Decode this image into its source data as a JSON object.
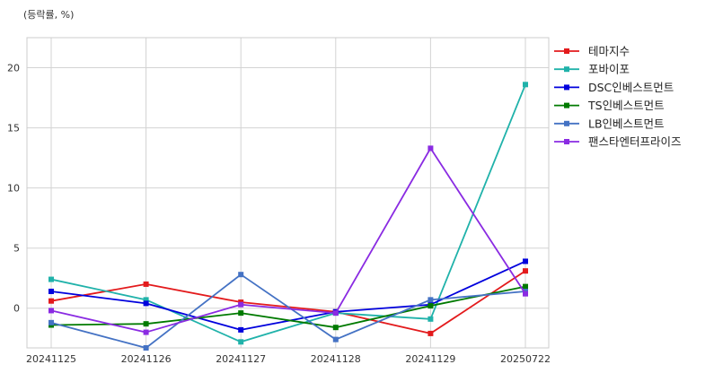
{
  "chart_data": {
    "type": "line",
    "unit_label": "(등락률, %)",
    "categories": [
      "20241125",
      "20241126",
      "20241127",
      "20241128",
      "20241129",
      "20250722"
    ],
    "yticks": [
      0,
      5,
      10,
      15,
      20
    ],
    "ylim": [
      -3.3,
      22.5
    ],
    "grid": true,
    "legend_position": "right",
    "series": [
      {
        "name": "테마지수",
        "color": "#e31a1c",
        "values": [
          0.6,
          2.0,
          0.5,
          -0.3,
          -2.1,
          3.1
        ]
      },
      {
        "name": "포바이포",
        "color": "#20b2aa",
        "values": [
          2.4,
          0.7,
          -2.8,
          -0.4,
          -0.9,
          18.6
        ]
      },
      {
        "name": "DSC인베스트먼트",
        "color": "#0000dd",
        "values": [
          1.4,
          0.4,
          -1.8,
          -0.3,
          0.3,
          3.9
        ]
      },
      {
        "name": "TS인베스트먼트",
        "color": "#007a00",
        "values": [
          -1.4,
          -1.3,
          -0.4,
          -1.6,
          0.2,
          1.8
        ]
      },
      {
        "name": "LB인베스트먼트",
        "color": "#4472c4",
        "values": [
          -1.2,
          -3.3,
          2.8,
          -2.6,
          0.7,
          1.4
        ]
      },
      {
        "name": "팬스타엔터프라이즈",
        "color": "#8a2be2",
        "values": [
          -0.2,
          -2.0,
          0.3,
          -0.4,
          13.3,
          1.2
        ]
      }
    ]
  }
}
